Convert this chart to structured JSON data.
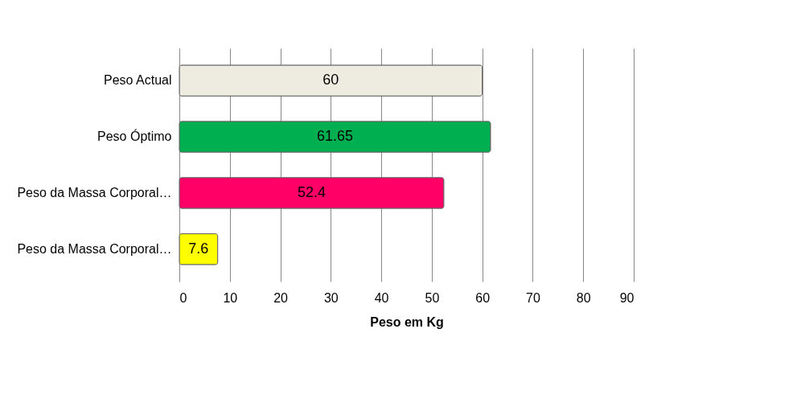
{
  "chart_data": {
    "type": "bar",
    "orientation": "horizontal",
    "xlabel": "Peso em Kg",
    "categories": [
      "Peso Actual",
      "Peso Óptimo",
      "Peso da Massa Corporal…",
      "Peso da Massa Corporal…"
    ],
    "values": [
      60,
      61.65,
      52.4,
      7.6
    ],
    "colors": [
      "#eeece1",
      "#00b050",
      "#ff0066",
      "#ffff00"
    ],
    "xlim": [
      0,
      90
    ],
    "xticks": [
      0,
      10,
      20,
      30,
      40,
      50,
      60,
      70,
      80,
      90
    ],
    "grid": "x",
    "data_labels": true
  }
}
